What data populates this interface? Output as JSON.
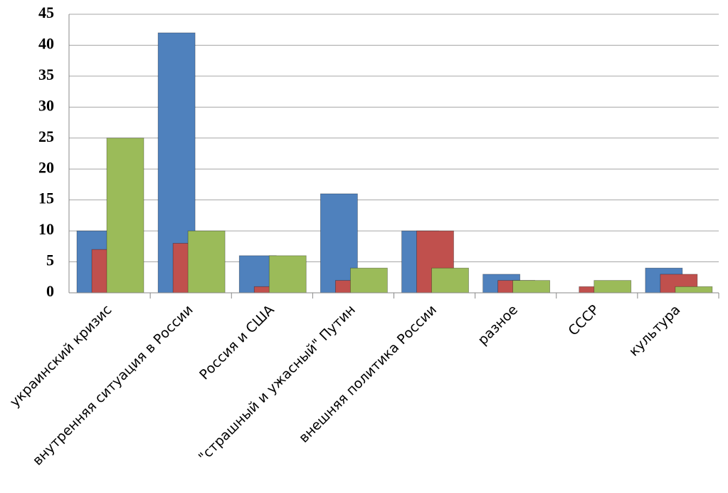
{
  "chart_data": {
    "type": "bar",
    "categories": [
      "украинский кризис",
      "внутренняя ситуация в России",
      "Россия и США",
      "\"страшный и ужасный\" Путин",
      "внешняя политика России",
      "разное",
      "СССР",
      "культура"
    ],
    "series": [
      {
        "color": "#4f81bd",
        "values": [
          10,
          42,
          6,
          16,
          10,
          3,
          0,
          4
        ]
      },
      {
        "color": "#c0504d",
        "values": [
          7,
          8,
          1,
          2,
          10,
          2,
          1,
          3
        ]
      },
      {
        "color": "#9bbb59",
        "values": [
          25,
          10,
          6,
          4,
          4,
          2,
          2,
          1
        ]
      }
    ],
    "ylim": [
      0,
      45
    ],
    "yticks": [
      0,
      5,
      10,
      15,
      20,
      25,
      30,
      35,
      40,
      45
    ],
    "grid": true
  }
}
